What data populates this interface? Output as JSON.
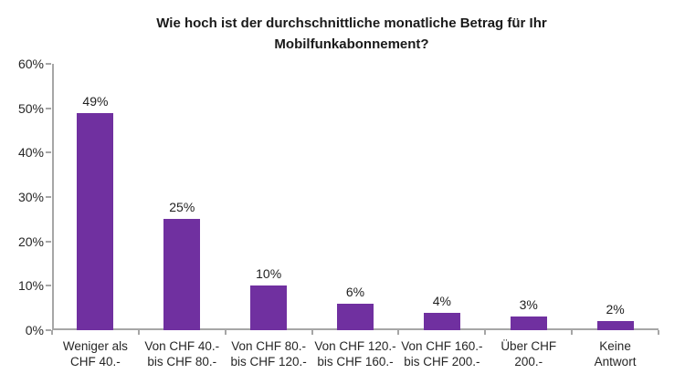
{
  "chart_data": {
    "type": "bar",
    "title": "Wie hoch ist der durchschnittliche monatliche Betrag für Ihr Mobilfunkabonnement?",
    "categories": [
      "Weniger als CHF 40.-",
      "Von CHF 40.- bis CHF 80.-",
      "Von CHF 80.- bis CHF 120.-",
      "Von CHF 120.- bis CHF 160.-",
      "Von CHF 160.- bis CHF 200.-",
      "Über CHF 200.-",
      "Keine Antwort"
    ],
    "category_label_lines": [
      [
        "Weniger als",
        "CHF 40.-"
      ],
      [
        "Von CHF 40.-",
        "bis CHF 80.-"
      ],
      [
        "Von CHF 80.-",
        "bis CHF 120.-"
      ],
      [
        "Von CHF 120.-",
        "bis CHF 160.-"
      ],
      [
        "Von CHF 160.-",
        "bis CHF 200.-"
      ],
      [
        "Über CHF",
        "200.-"
      ],
      [
        "Keine",
        "Antwort"
      ]
    ],
    "values": [
      49,
      25,
      10,
      6,
      4,
      3,
      2
    ],
    "data_labels": [
      "49%",
      "25%",
      "10%",
      "6%",
      "4%",
      "3%",
      "2%"
    ],
    "ylim": [
      0,
      60
    ],
    "ytick_labels": [
      "0%",
      "10%",
      "20%",
      "30%",
      "40%",
      "50%",
      "60%"
    ],
    "xlabel": "",
    "ylabel": "",
    "grid": false,
    "legend": false,
    "bar_color": "#7030A0",
    "axis_color": "#A6A6A6",
    "label_color": "#1F1F1F"
  }
}
